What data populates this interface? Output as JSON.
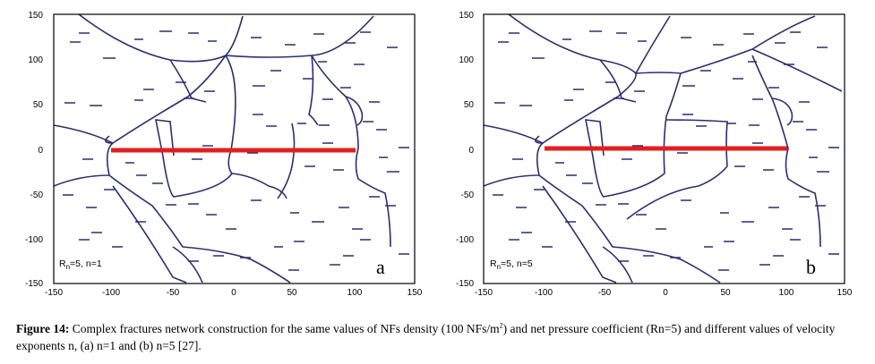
{
  "figure": {
    "panels": [
      {
        "id": "a",
        "letter": "a",
        "label_main": "R",
        "label_sub": "n",
        "label_rest": "=5, n=1",
        "x_ticks": [
          "-150",
          "-100",
          "-50",
          "0",
          "50",
          "100",
          "150"
        ],
        "y_ticks": [
          "150",
          "100",
          "50",
          "0",
          "-50",
          "-100",
          "-150"
        ]
      },
      {
        "id": "b",
        "letter": "b",
        "label_main": "R",
        "label_sub": "n",
        "label_rest": "=5, n=5",
        "x_ticks": [
          "-150",
          "-100",
          "-50",
          "0",
          "50",
          "100",
          "150"
        ],
        "y_ticks": [
          "150",
          "100",
          "50",
          "0",
          "-50",
          "-100",
          "-150"
        ]
      }
    ],
    "colors": {
      "fracture": "#2a2f6e",
      "hydraulic_fracture": "#e21f1f",
      "frame": "#000000"
    }
  },
  "caption": {
    "label": "Figure 14:",
    "text_1": " Complex fractures network construction for the same values of NFs density (100 NFs/m",
    "sup": "2",
    "text_2": ") and net pressure coefficient (Rn=5) and different values of velocity exponents n, (a) n=1 and (b) n=5 [27]."
  }
}
